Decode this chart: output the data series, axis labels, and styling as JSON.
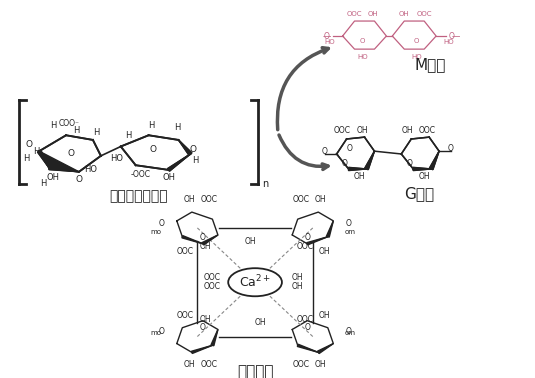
{
  "background_color": "#ffffff",
  "labels": {
    "sodium_alginate": "海藻酸钠分子式",
    "M_segment": "M片段",
    "G_segment": "G片段",
    "eggbox": "蛋盒模型"
  },
  "fig_width": 5.35,
  "fig_height": 3.78,
  "dpi": 100,
  "arrow_color": "#555555",
  "pink_color": "#c06080",
  "dark_color": "#222222"
}
